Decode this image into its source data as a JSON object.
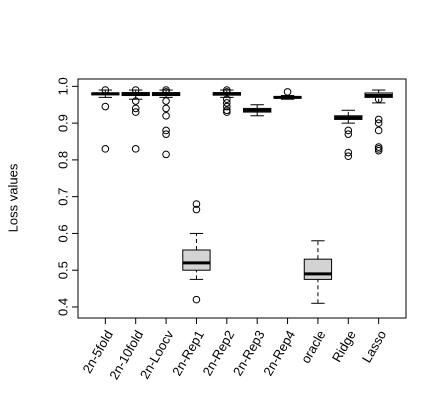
{
  "chart_data": {
    "type": "box",
    "y_label": "Loss values",
    "categories": [
      "2n-5fold",
      "2n-10fold",
      "2n-Loocv",
      "2n-Rep1",
      "2n-Rep2",
      "2n-Rep3",
      "2n-Rep4",
      "oracle",
      "Ridge",
      "Lasso"
    ],
    "boxes": [
      {
        "whislo": 0.97,
        "q1": 0.977,
        "med": 0.98,
        "q3": 0.982,
        "whishi": 0.99,
        "outliers": [
          0.99,
          0.945,
          0.83
        ]
      },
      {
        "whislo": 0.965,
        "q1": 0.975,
        "med": 0.98,
        "q3": 0.983,
        "whishi": 0.99,
        "outliers": [
          0.99,
          0.96,
          0.94,
          0.93,
          0.83
        ]
      },
      {
        "whislo": 0.97,
        "q1": 0.975,
        "med": 0.98,
        "q3": 0.983,
        "whishi": 0.99,
        "outliers": [
          0.99,
          0.985,
          0.96,
          0.94,
          0.92,
          0.88,
          0.87,
          0.815
        ]
      },
      {
        "whislo": 0.475,
        "q1": 0.5,
        "med": 0.52,
        "q3": 0.555,
        "whishi": 0.6,
        "outliers": [
          0.68,
          0.665,
          0.42
        ]
      },
      {
        "whislo": 0.97,
        "q1": 0.976,
        "med": 0.98,
        "q3": 0.983,
        "whishi": 0.99,
        "outliers": [
          0.99,
          0.985,
          0.965,
          0.955,
          0.945,
          0.935,
          0.93
        ]
      },
      {
        "whislo": 0.92,
        "q1": 0.93,
        "med": 0.935,
        "q3": 0.94,
        "whishi": 0.95,
        "outliers": []
      },
      {
        "whislo": 0.965,
        "q1": 0.968,
        "med": 0.97,
        "q3": 0.972,
        "whishi": 0.975,
        "outliers": [
          0.985
        ]
      },
      {
        "whislo": 0.41,
        "q1": 0.475,
        "med": 0.49,
        "q3": 0.53,
        "whishi": 0.58,
        "outliers": []
      },
      {
        "whislo": 0.9,
        "q1": 0.91,
        "med": 0.915,
        "q3": 0.92,
        "whishi": 0.935,
        "outliers": [
          0.88,
          0.87,
          0.82,
          0.81
        ]
      },
      {
        "whislo": 0.955,
        "q1": 0.97,
        "med": 0.975,
        "q3": 0.982,
        "whishi": 0.99,
        "outliers": [
          0.965,
          0.91,
          0.9,
          0.88,
          0.835,
          0.83,
          0.825
        ]
      }
    ],
    "color": "#d3d3d3",
    "ylim": [
      0.37,
      1.02
    ],
    "yticks": [
      0.4,
      0.5,
      0.6,
      0.7,
      0.8,
      0.9,
      {
        "value": 1,
        "label": "1.0"
      }
    ]
  }
}
